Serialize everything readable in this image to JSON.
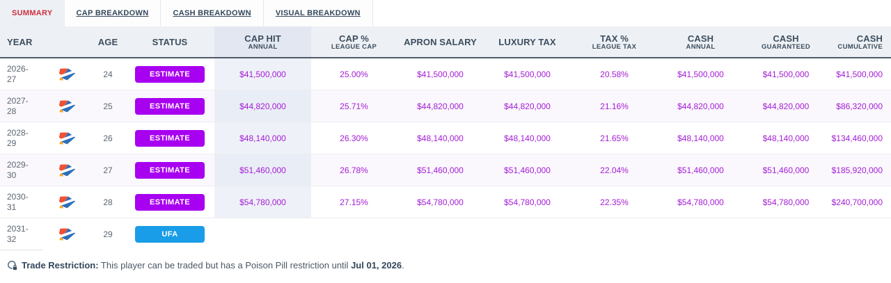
{
  "tabs": [
    {
      "label": "SUMMARY",
      "active": true
    },
    {
      "label": "CAP BREAKDOWN",
      "active": false
    },
    {
      "label": "CASH BREAKDOWN",
      "active": false
    },
    {
      "label": "VISUAL BREAKDOWN",
      "active": false
    }
  ],
  "table": {
    "headers": [
      {
        "main": "YEAR",
        "sub": ""
      },
      {
        "main": "AGE",
        "sub": ""
      },
      {
        "main": "STATUS",
        "sub": ""
      },
      {
        "main": "CAP HIT",
        "sub": "ANNUAL"
      },
      {
        "main": "CAP %",
        "sub": "LEAGUE CAP"
      },
      {
        "main": "APRON SALARY",
        "sub": ""
      },
      {
        "main": "LUXURY TAX",
        "sub": ""
      },
      {
        "main": "TAX %",
        "sub": "LEAGUE TAX"
      },
      {
        "main": "CASH",
        "sub": "ANNUAL"
      },
      {
        "main": "CASH",
        "sub": "GUARANTEED"
      },
      {
        "main": "CASH",
        "sub": "CUMULATIVE"
      }
    ],
    "rows": [
      {
        "year": "2026-27",
        "age": "24",
        "status": "ESTIMATE",
        "status_type": "estimate",
        "cap_hit": "$41,500,000",
        "cap_pct": "25.00%",
        "apron_salary": "$41,500,000",
        "luxury_tax": "$41,500,000",
        "tax_pct": "20.58%",
        "cash_annual": "$41,500,000",
        "cash_guaranteed": "$41,500,000",
        "cash_cumulative": "$41,500,000"
      },
      {
        "year": "2027-28",
        "age": "25",
        "status": "ESTIMATE",
        "status_type": "estimate",
        "cap_hit": "$44,820,000",
        "cap_pct": "25.71%",
        "apron_salary": "$44,820,000",
        "luxury_tax": "$44,820,000",
        "tax_pct": "21.16%",
        "cash_annual": "$44,820,000",
        "cash_guaranteed": "$44,820,000",
        "cash_cumulative": "$86,320,000"
      },
      {
        "year": "2028-29",
        "age": "26",
        "status": "ESTIMATE",
        "status_type": "estimate",
        "cap_hit": "$48,140,000",
        "cap_pct": "26.30%",
        "apron_salary": "$48,140,000",
        "luxury_tax": "$48,140,000",
        "tax_pct": "21.65%",
        "cash_annual": "$48,140,000",
        "cash_guaranteed": "$48,140,000",
        "cash_cumulative": "$134,460,000"
      },
      {
        "year": "2029-30",
        "age": "27",
        "status": "ESTIMATE",
        "status_type": "estimate",
        "cap_hit": "$51,460,000",
        "cap_pct": "26.78%",
        "apron_salary": "$51,460,000",
        "luxury_tax": "$51,460,000",
        "tax_pct": "22.04%",
        "cash_annual": "$51,460,000",
        "cash_guaranteed": "$51,460,000",
        "cash_cumulative": "$185,920,000"
      },
      {
        "year": "2030-31",
        "age": "28",
        "status": "ESTIMATE",
        "status_type": "estimate",
        "cap_hit": "$54,780,000",
        "cap_pct": "27.15%",
        "apron_salary": "$54,780,000",
        "luxury_tax": "$54,780,000",
        "tax_pct": "22.35%",
        "cash_annual": "$54,780,000",
        "cash_guaranteed": "$54,780,000",
        "cash_cumulative": "$240,700,000"
      },
      {
        "year": "2031-32",
        "age": "29",
        "status": "UFA",
        "status_type": "ufa",
        "cap_hit": "",
        "cap_pct": "",
        "apron_salary": "",
        "luxury_tax": "",
        "tax_pct": "",
        "cash_annual": "",
        "cash_guaranteed": "",
        "cash_cumulative": ""
      }
    ]
  },
  "team_logo": "okc-thunder",
  "colors": {
    "money_text": "#a31cd4",
    "estimate_badge": "#a800f0",
    "ufa_badge": "#1a9de8",
    "active_tab_text": "#d02e3e"
  },
  "footnote": {
    "label": "Trade Restriction:",
    "text": "This player can be traded but has a Poison Pill restriction until",
    "date": "Jul 01, 2026",
    "suffix": "."
  }
}
